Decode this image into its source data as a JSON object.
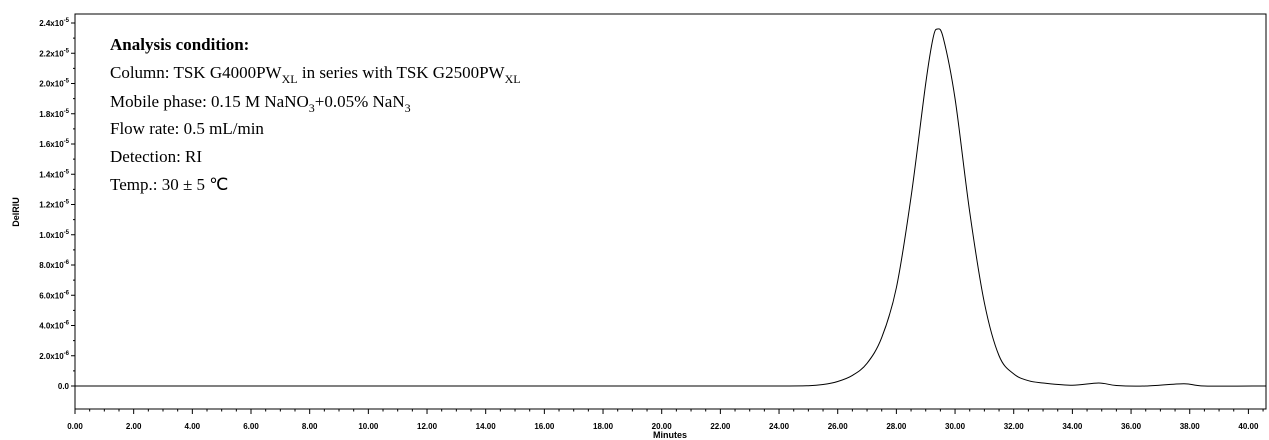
{
  "chart_data": {
    "type": "line",
    "xlabel": "Minutes",
    "ylabel": "DelRIU",
    "xlim": [
      0,
      40.6
    ],
    "ylim": [
      -1e-06,
      2.45e-05
    ],
    "grid": false,
    "x_ticks": [
      {
        "value": 0,
        "label": "0.00"
      },
      {
        "value": 2,
        "label": "2.00"
      },
      {
        "value": 4,
        "label": "4.00"
      },
      {
        "value": 6,
        "label": "6.00"
      },
      {
        "value": 8,
        "label": "8.00"
      },
      {
        "value": 10,
        "label": "10.00"
      },
      {
        "value": 12,
        "label": "12.00"
      },
      {
        "value": 14,
        "label": "14.00"
      },
      {
        "value": 16,
        "label": "16.00"
      },
      {
        "value": 18,
        "label": "18.00"
      },
      {
        "value": 20,
        "label": "20.00"
      },
      {
        "value": 22,
        "label": "22.00"
      },
      {
        "value": 24,
        "label": "24.00"
      },
      {
        "value": 26,
        "label": "26.00"
      },
      {
        "value": 28,
        "label": "28.00"
      },
      {
        "value": 30,
        "label": "30.00"
      },
      {
        "value": 32,
        "label": "32.00"
      },
      {
        "value": 34,
        "label": "34.00"
      },
      {
        "value": 36,
        "label": "36.00"
      },
      {
        "value": 38,
        "label": "38.00"
      },
      {
        "value": 40,
        "label": "40.00"
      }
    ],
    "y_ticks": [
      {
        "value": 0,
        "base": "0.0",
        "exp": ""
      },
      {
        "value": 2e-06,
        "base": "2.0x10",
        "exp": "-6"
      },
      {
        "value": 4e-06,
        "base": "4.0x10",
        "exp": "-6"
      },
      {
        "value": 6e-06,
        "base": "6.0x10",
        "exp": "-6"
      },
      {
        "value": 8e-06,
        "base": "8.0x10",
        "exp": "-6"
      },
      {
        "value": 1e-05,
        "base": "1.0x10",
        "exp": "-5"
      },
      {
        "value": 1.2e-05,
        "base": "1.2x10",
        "exp": "-5"
      },
      {
        "value": 1.4e-05,
        "base": "1.4x10",
        "exp": "-5"
      },
      {
        "value": 1.6e-05,
        "base": "1.6x10",
        "exp": "-5"
      },
      {
        "value": 1.8e-05,
        "base": "1.8x10",
        "exp": "-5"
      },
      {
        "value": 2e-05,
        "base": "2.0x10",
        "exp": "-5"
      },
      {
        "value": 2.2e-05,
        "base": "2.2x10",
        "exp": "-5"
      },
      {
        "value": 2.4e-05,
        "base": "2.4x10",
        "exp": "-5"
      }
    ],
    "series": [
      {
        "color": "#000000",
        "points": [
          [
            0,
            0.0
          ],
          [
            5,
            0.0
          ],
          [
            10,
            0.0
          ],
          [
            15,
            0.0
          ],
          [
            20,
            0.0
          ],
          [
            24,
            0.0
          ],
          [
            25,
            2e-08
          ],
          [
            25.5,
            1e-07
          ],
          [
            26,
            3e-07
          ],
          [
            26.5,
            7e-07
          ],
          [
            27,
            1.5e-06
          ],
          [
            27.5,
            3.2e-06
          ],
          [
            28,
            6.5e-06
          ],
          [
            28.5,
            1.25e-05
          ],
          [
            29,
            2e-05
          ],
          [
            29.25,
            2.3e-05
          ],
          [
            29.4,
            2.36e-05
          ],
          [
            29.6,
            2.3e-05
          ],
          [
            30,
            1.9e-05
          ],
          [
            30.5,
            1.15e-05
          ],
          [
            31,
            5.5e-06
          ],
          [
            31.5,
            2e-06
          ],
          [
            32,
            8e-07
          ],
          [
            32.5,
            3.5e-07
          ],
          [
            33,
            2e-07
          ],
          [
            34,
            5e-08
          ],
          [
            34.9,
            2e-07
          ],
          [
            35.5,
            3e-08
          ],
          [
            36.5,
            0.0
          ],
          [
            37.8,
            1.5e-07
          ],
          [
            38.5,
            0.0
          ],
          [
            40.6,
            0.0
          ]
        ]
      }
    ]
  },
  "annotation": {
    "title": "Analysis condition:",
    "column_prefix": "Column: TSK G4000PW",
    "column_sub1": "XL",
    "column_mid": " in series with TSK G2500PW",
    "column_sub2": "XL",
    "mobile_prefix": "Mobile phase: 0.15 M NaNO",
    "mobile_sub1": "3",
    "mobile_mid": "+0.05% NaN",
    "mobile_sub2": "3",
    "flow": "Flow rate: 0.5 mL/min",
    "detection": "Detection: RI",
    "temp": "Temp.: 30 ± 5 ℃"
  }
}
